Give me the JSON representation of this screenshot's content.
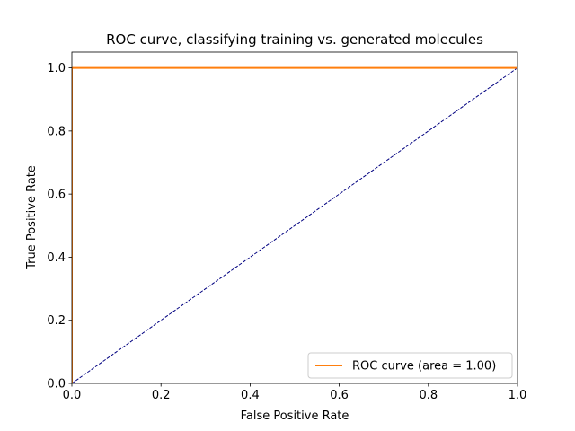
{
  "chart_data": {
    "type": "line",
    "title": "ROC curve, classifying training vs. generated molecules",
    "xlabel": "False Positive Rate",
    "ylabel": "True Positive Rate",
    "xlim": [
      0.0,
      1.0
    ],
    "ylim": [
      0.0,
      1.05
    ],
    "x_ticks": [
      "0.0",
      "0.2",
      "0.4",
      "0.6",
      "0.8",
      "1.0"
    ],
    "y_ticks": [
      "0.0",
      "0.2",
      "0.4",
      "0.6",
      "0.8",
      "1.0"
    ],
    "grid": false,
    "legend_position": "lower-right",
    "series": [
      {
        "name": "ROC curve (area = 1.00)",
        "color": "#ff7f0e",
        "line_style": "solid",
        "x": [
          0.0,
          0.0,
          1.0
        ],
        "y": [
          0.0,
          1.0,
          1.0
        ]
      },
      {
        "color": "#000080",
        "line_style": "dashed",
        "x": [
          0.0,
          1.0
        ],
        "y": [
          0.0,
          1.0
        ]
      }
    ]
  }
}
